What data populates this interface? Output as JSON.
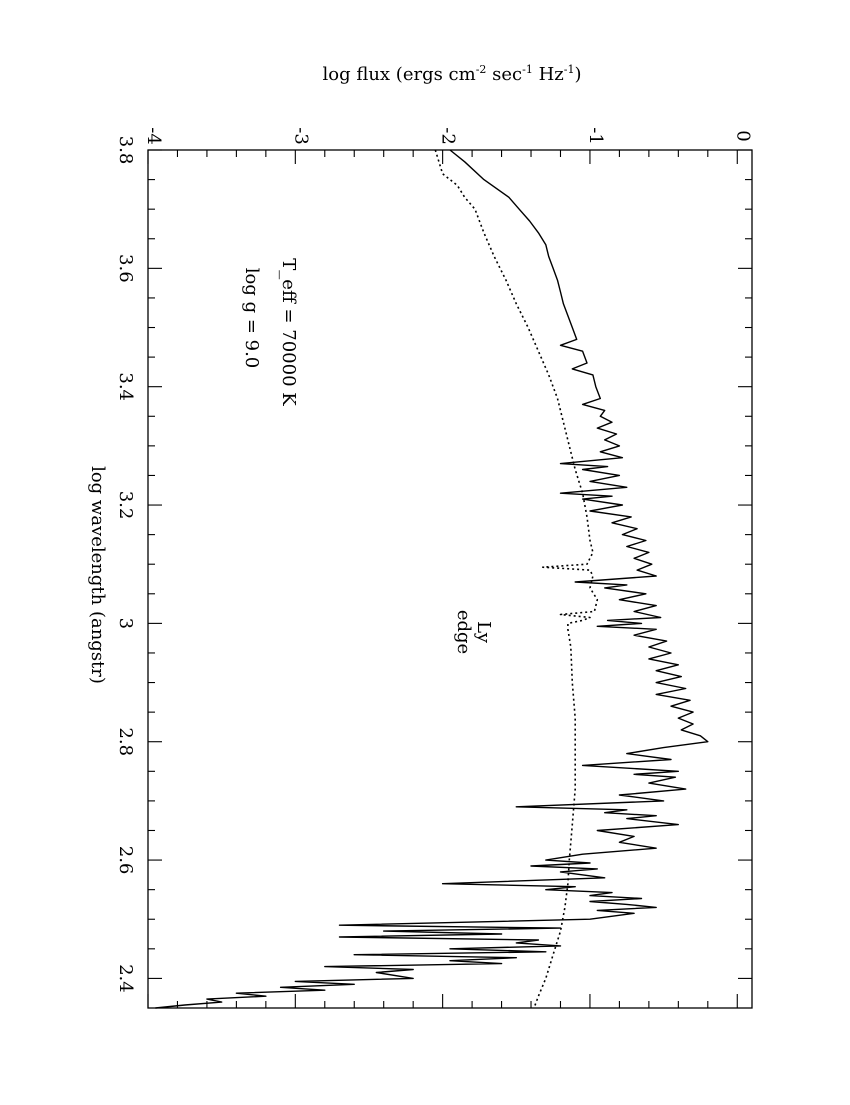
{
  "chart_data": {
    "type": "line",
    "orientation": "rotated 90° (x axis vertical, increasing upward)",
    "xlabel": "log wavelength (angstr)",
    "ylabel_parts": [
      "log flux (ergs cm",
      "-2",
      " sec",
      "-1",
      " Hz",
      "-1",
      ")"
    ],
    "xlim": [
      2.35,
      3.8
    ],
    "ylim": [
      -4,
      0.1
    ],
    "x_ticks": [
      "3.8",
      "3.6",
      "3.4",
      "3.2",
      "3",
      "2.8",
      "2.6",
      "2.4"
    ],
    "y_ticks": [
      "-4",
      "-3",
      "-2",
      "-1",
      "0"
    ],
    "annotations": {
      "teff": "T_eff = 70000 K",
      "logg": "log g = 9.0",
      "ly_1": "Ly",
      "ly_2": "edge"
    },
    "series": [
      {
        "style": "solid",
        "points": [
          [
            3.8,
            -1.95
          ],
          [
            3.78,
            -1.85
          ],
          [
            3.75,
            -1.72
          ],
          [
            3.72,
            -1.55
          ],
          [
            3.7,
            -1.48
          ],
          [
            3.68,
            -1.41
          ],
          [
            3.66,
            -1.35
          ],
          [
            3.64,
            -1.3
          ],
          [
            3.62,
            -1.28
          ],
          [
            3.6,
            -1.25
          ],
          [
            3.58,
            -1.22
          ],
          [
            3.56,
            -1.2
          ],
          [
            3.54,
            -1.18
          ],
          [
            3.52,
            -1.15
          ],
          [
            3.5,
            -1.12
          ],
          [
            3.48,
            -1.09
          ],
          [
            3.47,
            -1.2
          ],
          [
            3.46,
            -1.05
          ],
          [
            3.44,
            -1.02
          ],
          [
            3.43,
            -1.12
          ],
          [
            3.42,
            -0.98
          ],
          [
            3.4,
            -0.96
          ],
          [
            3.38,
            -0.93
          ],
          [
            3.37,
            -1.05
          ],
          [
            3.36,
            -0.9
          ],
          [
            3.35,
            -0.93
          ],
          [
            3.34,
            -0.85
          ],
          [
            3.33,
            -0.95
          ],
          [
            3.32,
            -0.82
          ],
          [
            3.31,
            -0.9
          ],
          [
            3.3,
            -0.8
          ],
          [
            3.29,
            -0.93
          ],
          [
            3.28,
            -0.78
          ],
          [
            3.27,
            -1.2
          ],
          [
            3.265,
            -0.88
          ],
          [
            3.26,
            -1.05
          ],
          [
            3.25,
            -0.8
          ],
          [
            3.24,
            -1.0
          ],
          [
            3.23,
            -0.75
          ],
          [
            3.22,
            -1.2
          ],
          [
            3.215,
            -0.85
          ],
          [
            3.21,
            -1.05
          ],
          [
            3.2,
            -0.78
          ],
          [
            3.19,
            -1.0
          ],
          [
            3.18,
            -0.72
          ],
          [
            3.17,
            -0.85
          ],
          [
            3.16,
            -0.68
          ],
          [
            3.15,
            -0.78
          ],
          [
            3.14,
            -0.62
          ],
          [
            3.13,
            -0.75
          ],
          [
            3.12,
            -0.6
          ],
          [
            3.11,
            -0.7
          ],
          [
            3.1,
            -0.58
          ],
          [
            3.09,
            -0.68
          ],
          [
            3.08,
            -0.55
          ],
          [
            3.07,
            -1.1
          ],
          [
            3.065,
            -0.75
          ],
          [
            3.06,
            -0.9
          ],
          [
            3.05,
            -0.62
          ],
          [
            3.04,
            -0.8
          ],
          [
            3.03,
            -0.55
          ],
          [
            3.02,
            -0.7
          ],
          [
            3.01,
            -0.52
          ],
          [
            3.005,
            -0.88
          ],
          [
            3.0,
            -0.65
          ],
          [
            2.995,
            -0.95
          ],
          [
            2.99,
            -0.55
          ],
          [
            2.98,
            -0.7
          ],
          [
            2.97,
            -0.48
          ],
          [
            2.96,
            -0.6
          ],
          [
            2.95,
            -0.45
          ],
          [
            2.94,
            -0.6
          ],
          [
            2.93,
            -0.4
          ],
          [
            2.92,
            -0.55
          ],
          [
            2.91,
            -0.38
          ],
          [
            2.9,
            -0.55
          ],
          [
            2.89,
            -0.35
          ],
          [
            2.88,
            -0.55
          ],
          [
            2.87,
            -0.32
          ],
          [
            2.86,
            -0.45
          ],
          [
            2.85,
            -0.3
          ],
          [
            2.84,
            -0.4
          ],
          [
            2.83,
            -0.3
          ],
          [
            2.82,
            -0.38
          ],
          [
            2.81,
            -0.25
          ],
          [
            2.8,
            -0.2
          ],
          [
            2.79,
            -0.5
          ],
          [
            2.78,
            -0.75
          ],
          [
            2.77,
            -0.45
          ],
          [
            2.76,
            -1.05
          ],
          [
            2.75,
            -0.4
          ],
          [
            2.745,
            -0.7
          ],
          [
            2.74,
            -0.42
          ],
          [
            2.73,
            -0.6
          ],
          [
            2.72,
            -0.35
          ],
          [
            2.71,
            -0.8
          ],
          [
            2.7,
            -0.5
          ],
          [
            2.69,
            -1.5
          ],
          [
            2.685,
            -0.75
          ],
          [
            2.68,
            -0.9
          ],
          [
            2.675,
            -0.55
          ],
          [
            2.67,
            -0.75
          ],
          [
            2.66,
            -0.4
          ],
          [
            2.65,
            -0.95
          ],
          [
            2.64,
            -0.7
          ],
          [
            2.63,
            -0.8
          ],
          [
            2.62,
            -0.55
          ],
          [
            2.61,
            -1.05
          ],
          [
            2.6,
            -1.3
          ],
          [
            2.595,
            -1.0
          ],
          [
            2.59,
            -1.4
          ],
          [
            2.585,
            -0.95
          ],
          [
            2.58,
            -1.2
          ],
          [
            2.57,
            -0.9
          ],
          [
            2.56,
            -2.0
          ],
          [
            2.555,
            -1.1
          ],
          [
            2.55,
            -1.3
          ],
          [
            2.545,
            -0.85
          ],
          [
            2.54,
            -1.0
          ],
          [
            2.535,
            -0.65
          ],
          [
            2.53,
            -1.0
          ],
          [
            2.525,
            -0.75
          ],
          [
            2.52,
            -0.55
          ],
          [
            2.515,
            -0.95
          ],
          [
            2.51,
            -0.7
          ],
          [
            2.5,
            -1.0
          ],
          [
            2.49,
            -2.7
          ],
          [
            2.485,
            -1.2
          ],
          [
            2.48,
            -2.4
          ],
          [
            2.475,
            -1.6
          ],
          [
            2.47,
            -2.7
          ],
          [
            2.465,
            -1.35
          ],
          [
            2.46,
            -1.5
          ],
          [
            2.455,
            -1.2
          ],
          [
            2.45,
            -1.95
          ],
          [
            2.445,
            -1.3
          ],
          [
            2.44,
            -2.6
          ],
          [
            2.435,
            -1.5
          ],
          [
            2.43,
            -1.95
          ],
          [
            2.425,
            -1.6
          ],
          [
            2.42,
            -2.8
          ],
          [
            2.415,
            -2.2
          ],
          [
            2.41,
            -2.45
          ],
          [
            2.4,
            -2.2
          ],
          [
            2.395,
            -3.0
          ],
          [
            2.39,
            -2.6
          ],
          [
            2.385,
            -3.1
          ],
          [
            2.38,
            -2.8
          ],
          [
            2.375,
            -3.4
          ],
          [
            2.37,
            -3.2
          ],
          [
            2.365,
            -3.6
          ],
          [
            2.36,
            -3.5
          ],
          [
            2.355,
            -3.75
          ],
          [
            2.35,
            -3.95
          ]
        ]
      },
      {
        "style": "dotted",
        "points": [
          [
            3.8,
            -2.05
          ],
          [
            3.76,
            -2.0
          ],
          [
            3.74,
            -1.9
          ],
          [
            3.72,
            -1.85
          ],
          [
            3.7,
            -1.78
          ],
          [
            3.66,
            -1.72
          ],
          [
            3.62,
            -1.65
          ],
          [
            3.58,
            -1.57
          ],
          [
            3.54,
            -1.5
          ],
          [
            3.5,
            -1.42
          ],
          [
            3.46,
            -1.35
          ],
          [
            3.42,
            -1.28
          ],
          [
            3.38,
            -1.22
          ],
          [
            3.34,
            -1.18
          ],
          [
            3.3,
            -1.14
          ],
          [
            3.26,
            -1.1
          ],
          [
            3.22,
            -1.05
          ],
          [
            3.18,
            -1.02
          ],
          [
            3.14,
            -1.0
          ],
          [
            3.12,
            -0.98
          ],
          [
            3.1,
            -1.02
          ],
          [
            3.095,
            -1.32
          ],
          [
            3.09,
            -1.0
          ],
          [
            3.08,
            -0.98
          ],
          [
            3.06,
            -1.0
          ],
          [
            3.04,
            -0.95
          ],
          [
            3.02,
            -0.97
          ],
          [
            3.015,
            -1.2
          ],
          [
            3.01,
            -1.0
          ],
          [
            3.005,
            -1.05
          ],
          [
            3.0,
            -1.15
          ],
          [
            2.99,
            -1.15
          ],
          [
            2.96,
            -1.13
          ],
          [
            2.9,
            -1.12
          ],
          [
            2.84,
            -1.1
          ],
          [
            2.78,
            -1.1
          ],
          [
            2.72,
            -1.1
          ],
          [
            2.66,
            -1.12
          ],
          [
            2.6,
            -1.14
          ],
          [
            2.56,
            -1.15
          ],
          [
            2.52,
            -1.17
          ],
          [
            2.48,
            -1.2
          ],
          [
            2.44,
            -1.25
          ],
          [
            2.4,
            -1.3
          ],
          [
            2.37,
            -1.35
          ],
          [
            2.35,
            -1.38
          ]
        ]
      }
    ]
  }
}
